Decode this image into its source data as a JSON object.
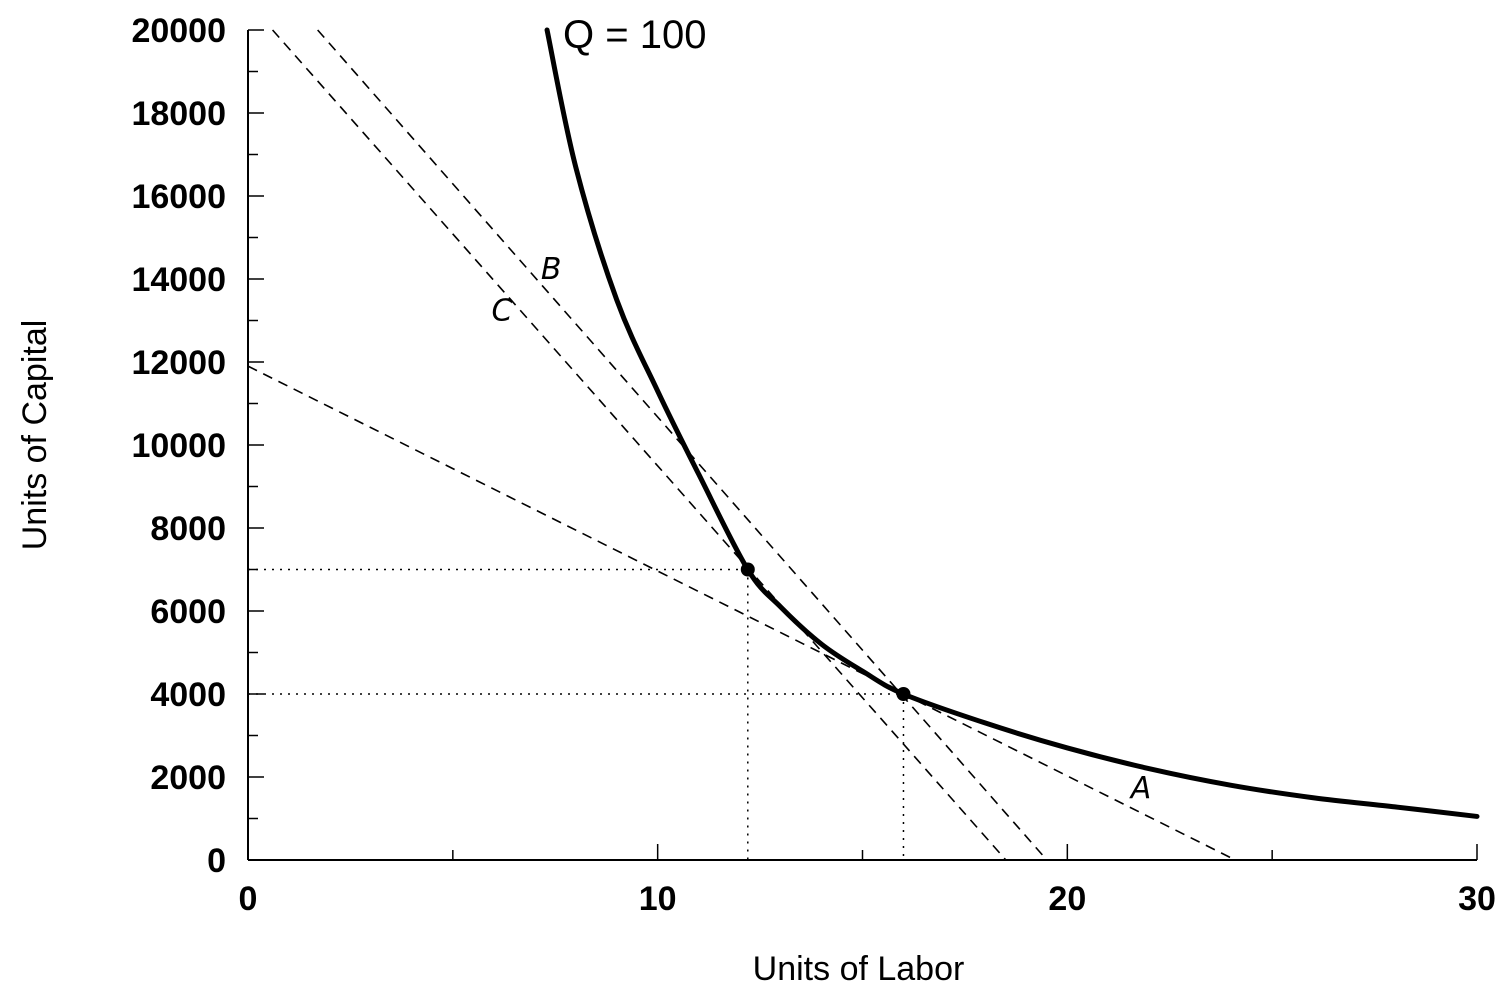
{
  "chart_data": {
    "type": "line",
    "xlabel": "Units of Labor",
    "ylabel": "Units of Capital",
    "xlim": [
      0,
      30
    ],
    "ylim": [
      0,
      20000
    ],
    "x_ticks": [
      0,
      10,
      20,
      30
    ],
    "y_ticks": [
      0,
      2000,
      4000,
      6000,
      8000,
      10000,
      12000,
      14000,
      16000,
      18000,
      20000
    ],
    "x_minor_step": 5,
    "y_minor_step": 1000,
    "grid": false,
    "isoquant": {
      "label": "Q = 100",
      "points": [
        [
          7.3,
          20000
        ],
        [
          8,
          16700
        ],
        [
          9,
          13500
        ],
        [
          10,
          11300
        ],
        [
          11,
          9300
        ],
        [
          12.2,
          7000
        ],
        [
          13,
          6100
        ],
        [
          14,
          5200
        ],
        [
          15,
          4550
        ],
        [
          16,
          4000
        ],
        [
          18,
          3300
        ],
        [
          20,
          2700
        ],
        [
          22,
          2200
        ],
        [
          24,
          1800
        ],
        [
          26,
          1500
        ],
        [
          28,
          1280
        ],
        [
          30,
          1050
        ]
      ]
    },
    "isocost_lines": [
      {
        "label": "A",
        "points": [
          [
            0,
            11900
          ],
          [
            24.1,
            0
          ]
        ],
        "label_at": [
          21.8,
          1500
        ]
      },
      {
        "label": "B",
        "points": [
          [
            1.7,
            20000
          ],
          [
            19.5,
            0
          ]
        ],
        "label_at": [
          7.4,
          14000
        ]
      },
      {
        "label": "C",
        "points": [
          [
            0.6,
            20000
          ],
          [
            18.5,
            0
          ]
        ],
        "label_at": [
          6.2,
          13000
        ]
      }
    ],
    "tangency_points": [
      [
        12.2,
        7000
      ],
      [
        16,
        4000
      ]
    ]
  }
}
